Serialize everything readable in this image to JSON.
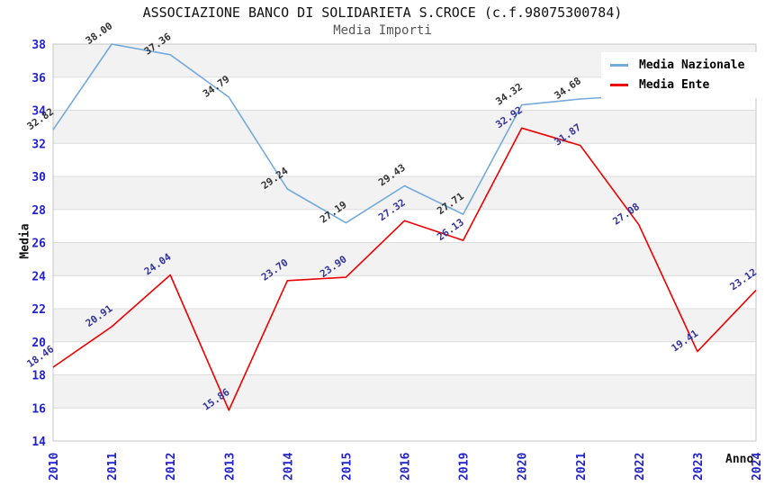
{
  "chart_data": {
    "type": "line",
    "title": "ASSOCIAZIONE BANCO DI SOLIDARIETA S.CROCE (c.f.98075300784)",
    "subtitle": "Media Importi",
    "xlabel": "Anno",
    "ylabel": "Media",
    "ylim": [
      14,
      38
    ],
    "yticks": [
      14,
      16,
      18,
      20,
      22,
      24,
      26,
      28,
      30,
      32,
      34,
      36,
      38
    ],
    "grid": true,
    "legend_position": "top-right",
    "categories": [
      "2010",
      "2011",
      "2012",
      "2013",
      "2014",
      "2015",
      "2016",
      "2019",
      "2020",
      "2021",
      "2022",
      "2023",
      "2024"
    ],
    "series": [
      {
        "name": "Media Nazionale",
        "dataName": "media-nazionale",
        "color": "#74a9dc",
        "label_color": "#333333",
        "values": [
          32.82,
          38.0,
          37.36,
          34.79,
          29.24,
          27.19,
          29.43,
          27.71,
          34.32,
          34.68,
          34.9,
          34.97,
          34.83
        ],
        "labels": [
          "32.82",
          "38.00",
          "37.36",
          "34.79",
          "29.24",
          "27.19",
          "29.43",
          "27.71",
          "34.32",
          "34.68",
          "",
          "",
          "34.83"
        ]
      },
      {
        "name": "Media Ente",
        "dataName": "media-ente",
        "color": "#ee0000",
        "label_color": "#333399",
        "values": [
          18.46,
          20.91,
          24.04,
          15.86,
          23.7,
          23.9,
          27.32,
          26.13,
          32.92,
          31.87,
          27.08,
          19.41,
          23.12
        ],
        "labels": [
          "18.46",
          "20.91",
          "24.04",
          "15.86",
          "23.70",
          "23.90",
          "27.32",
          "26.13",
          "32.92",
          "31.87",
          "27.08",
          "19.41",
          "23.12"
        ]
      }
    ],
    "colors": {
      "band": "#f2f2f2",
      "grid": "#dcdcdc",
      "border": "#c6c6c6",
      "tick": "#2222cc"
    }
  }
}
